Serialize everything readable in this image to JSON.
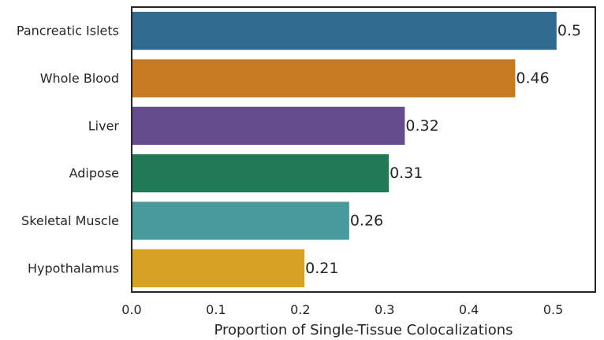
{
  "chart_data": {
    "type": "bar",
    "orientation": "horizontal",
    "categories": [
      "Pancreatic Islets",
      "Whole Blood",
      "Liver",
      "Adipose",
      "Skeletal Muscle",
      "Hypothalamus"
    ],
    "values": [
      0.5,
      0.46,
      0.32,
      0.31,
      0.26,
      0.21
    ],
    "bar_values": [
      0.504,
      0.455,
      0.324,
      0.305,
      0.258,
      0.205
    ],
    "data_labels": [
      "0.5",
      "0.46",
      "0.32",
      "0.31",
      "0.26",
      "0.21"
    ],
    "colors": [
      "#2e6b8e",
      "#c77a22",
      "#634e8b",
      "#227957",
      "#47999a",
      "#d6a125"
    ],
    "xlabel": "Proportion of Single-Tissue Colocalizations",
    "ylabel": "",
    "title": "",
    "xlim": [
      0,
      0.55
    ],
    "xticks": [
      0.0,
      0.1,
      0.2,
      0.3,
      0.4,
      0.5
    ],
    "xtick_labels": [
      "0.0",
      "0.1",
      "0.2",
      "0.3",
      "0.4",
      "0.5"
    ],
    "grid": false,
    "legend": "none"
  }
}
